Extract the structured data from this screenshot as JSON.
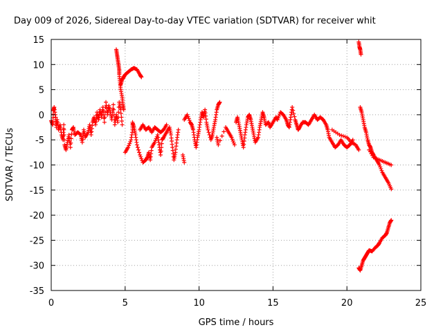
{
  "chart_data": {
    "type": "scatter",
    "title": "Day 009 of 2026, Sidereal Day-to-day VTEC variation (SDTVAR) for receiver whit",
    "xlabel": "GPS time / hours",
    "ylabel": "SDTVAR / TECUs",
    "xlim": [
      0,
      25
    ],
    "ylim": [
      -35,
      15
    ],
    "xticks": [
      "0",
      "5",
      "10",
      "15",
      "20",
      "25"
    ],
    "yticks": [
      "15",
      "10",
      "5",
      "0",
      "-5",
      "-10",
      "-15",
      "-20",
      "-25",
      "-30",
      "-35"
    ],
    "grid": true,
    "marker": "+",
    "color": "#ff0000",
    "series": [
      {
        "name": "SDTVAR",
        "points": [
          [
            0.0,
            -1.2
          ],
          [
            0.1,
            -2.0
          ],
          [
            0.15,
            0.8
          ],
          [
            0.2,
            1.5
          ],
          [
            0.3,
            -0.5
          ],
          [
            0.35,
            -2.5
          ],
          [
            0.4,
            -1.0
          ],
          [
            0.5,
            -3.0
          ],
          [
            0.6,
            -2.0
          ],
          [
            0.7,
            -4.0
          ],
          [
            0.8,
            -5.0
          ],
          [
            0.85,
            -2.0
          ],
          [
            0.9,
            -6.0
          ],
          [
            1.0,
            -7.0
          ],
          [
            1.1,
            -5.5
          ],
          [
            1.2,
            -4.0
          ],
          [
            1.3,
            -6.5
          ],
          [
            1.4,
            -3.0
          ],
          [
            1.5,
            -2.5
          ],
          [
            1.6,
            -4.0
          ],
          [
            1.8,
            -3.5
          ],
          [
            2.0,
            -4.0
          ],
          [
            2.1,
            -5.5
          ],
          [
            2.2,
            -3.0
          ],
          [
            2.3,
            -4.5
          ],
          [
            2.5,
            -3.5
          ],
          [
            2.6,
            -2.0
          ],
          [
            2.7,
            -4.0
          ],
          [
            2.8,
            -1.5
          ],
          [
            2.9,
            -0.5
          ],
          [
            3.0,
            -2.0
          ],
          [
            3.1,
            0.5
          ],
          [
            3.2,
            -1.0
          ],
          [
            3.3,
            1.0
          ],
          [
            3.4,
            -0.5
          ],
          [
            3.5,
            1.5
          ],
          [
            3.6,
            -1.5
          ],
          [
            3.7,
            2.5
          ],
          [
            3.8,
            0.0
          ],
          [
            3.9,
            1.8
          ],
          [
            4.0,
            0.5
          ],
          [
            4.1,
            -1.0
          ],
          [
            4.2,
            2.0
          ],
          [
            4.3,
            -2.0
          ],
          [
            4.4,
            0.0
          ],
          [
            4.5,
            -1.5
          ],
          [
            4.6,
            2.5
          ],
          [
            4.7,
            1.0
          ],
          [
            4.8,
            -2.0
          ],
          [
            4.4,
            13.0
          ],
          [
            4.45,
            12.0
          ],
          [
            4.5,
            11.0
          ],
          [
            4.55,
            10.0
          ],
          [
            4.6,
            9.0
          ],
          [
            4.6,
            8.0
          ],
          [
            4.65,
            6.5
          ],
          [
            4.7,
            5.0
          ],
          [
            4.8,
            3.5
          ],
          [
            4.85,
            2.0
          ],
          [
            4.9,
            1.0
          ],
          [
            4.7,
            6.0
          ],
          [
            4.8,
            7.0
          ],
          [
            4.9,
            7.5
          ],
          [
            5.0,
            8.0
          ],
          [
            5.2,
            8.5
          ],
          [
            5.4,
            9.0
          ],
          [
            5.6,
            9.3
          ],
          [
            5.8,
            9.0
          ],
          [
            6.0,
            8.0
          ],
          [
            6.1,
            7.5
          ],
          [
            5.0,
            -7.5
          ],
          [
            5.2,
            -6.5
          ],
          [
            5.4,
            -5.0
          ],
          [
            5.5,
            -3.0
          ],
          [
            5.5,
            -1.5
          ],
          [
            5.6,
            -2.5
          ],
          [
            5.7,
            -4.0
          ],
          [
            5.8,
            -6.0
          ],
          [
            6.0,
            -8.0
          ],
          [
            6.2,
            -9.5
          ],
          [
            6.4,
            -9.0
          ],
          [
            6.5,
            -8.5
          ],
          [
            6.6,
            -7.5
          ],
          [
            6.7,
            -9.0
          ],
          [
            6.8,
            -6.5
          ],
          [
            7.0,
            -5.5
          ],
          [
            7.2,
            -4.0
          ],
          [
            7.3,
            -6.0
          ],
          [
            7.4,
            -8.0
          ],
          [
            7.5,
            -5.0
          ],
          [
            7.6,
            -4.5
          ],
          [
            7.8,
            -3.5
          ],
          [
            8.0,
            -2.5
          ],
          [
            8.1,
            -4.0
          ],
          [
            8.2,
            -6.5
          ],
          [
            8.3,
            -9.0
          ],
          [
            8.4,
            -7.5
          ],
          [
            8.5,
            -5.0
          ],
          [
            8.6,
            -3.0
          ],
          [
            6.0,
            -3.0
          ],
          [
            6.2,
            -2.0
          ],
          [
            6.4,
            -3.0
          ],
          [
            6.6,
            -2.5
          ],
          [
            6.8,
            -3.5
          ],
          [
            7.0,
            -2.5
          ],
          [
            7.2,
            -3.0
          ],
          [
            7.4,
            -3.5
          ],
          [
            7.6,
            -3.0
          ],
          [
            7.8,
            -2.0
          ],
          [
            8.9,
            -8.0
          ],
          [
            9.0,
            -9.5
          ],
          [
            9.0,
            -1.0
          ],
          [
            9.2,
            0.0
          ],
          [
            9.4,
            -1.5
          ],
          [
            9.5,
            -2.0
          ],
          [
            9.6,
            -3.0
          ],
          [
            9.7,
            -5.0
          ],
          [
            9.8,
            -6.5
          ],
          [
            9.9,
            -4.5
          ],
          [
            10.0,
            -3.0
          ],
          [
            10.1,
            -1.0
          ],
          [
            10.2,
            0.5
          ],
          [
            10.3,
            -0.5
          ],
          [
            10.4,
            1.0
          ],
          [
            10.5,
            -1.5
          ],
          [
            10.6,
            -3.0
          ],
          [
            10.8,
            -5.0
          ],
          [
            10.9,
            -4.0
          ],
          [
            11.0,
            -2.5
          ],
          [
            11.1,
            -1.0
          ],
          [
            11.2,
            1.0
          ],
          [
            11.3,
            2.0
          ],
          [
            11.4,
            2.5
          ],
          [
            11.2,
            -4.5
          ],
          [
            11.3,
            -6.0
          ],
          [
            11.8,
            -2.5
          ],
          [
            12.0,
            -3.5
          ],
          [
            12.2,
            -4.5
          ],
          [
            12.4,
            -6.0
          ],
          [
            12.5,
            -1.5
          ],
          [
            12.6,
            -0.5
          ],
          [
            12.7,
            -2.0
          ],
          [
            12.8,
            -3.5
          ],
          [
            12.9,
            -5.0
          ],
          [
            13.0,
            -6.5
          ],
          [
            13.1,
            -4.0
          ],
          [
            13.2,
            -2.0
          ],
          [
            13.3,
            -0.5
          ],
          [
            13.4,
            0.0
          ],
          [
            13.5,
            -1.0
          ],
          [
            13.6,
            -2.5
          ],
          [
            13.7,
            -4.0
          ],
          [
            13.8,
            -5.5
          ],
          [
            14.0,
            -4.5
          ],
          [
            14.1,
            -2.5
          ],
          [
            14.2,
            -1.0
          ],
          [
            14.3,
            0.5
          ],
          [
            14.4,
            -0.5
          ],
          [
            14.5,
            -2.0
          ],
          [
            14.7,
            -1.5
          ],
          [
            14.8,
            -2.5
          ],
          [
            15.0,
            -1.5
          ],
          [
            15.2,
            -0.5
          ],
          [
            15.3,
            -1.0
          ],
          [
            15.5,
            0.5
          ],
          [
            15.7,
            0.0
          ],
          [
            15.9,
            -1.0
          ],
          [
            16.0,
            -2.0
          ],
          [
            16.1,
            -2.5
          ],
          [
            16.2,
            -0.5
          ],
          [
            16.3,
            1.5
          ],
          [
            16.5,
            -1.0
          ],
          [
            16.6,
            -2.0
          ],
          [
            16.7,
            -3.0
          ],
          [
            16.8,
            -2.5
          ],
          [
            17.0,
            -1.5
          ],
          [
            17.2,
            -1.5
          ],
          [
            17.4,
            -2.0
          ],
          [
            17.6,
            -1.0
          ],
          [
            17.8,
            0.0
          ],
          [
            18.0,
            -1.0
          ],
          [
            18.2,
            -0.5
          ],
          [
            18.4,
            -1.0
          ],
          [
            18.6,
            -2.0
          ],
          [
            18.7,
            -3.0
          ],
          [
            18.8,
            -4.5
          ],
          [
            19.0,
            -5.5
          ],
          [
            19.2,
            -6.5
          ],
          [
            19.4,
            -6.0
          ],
          [
            19.6,
            -5.0
          ],
          [
            19.8,
            -6.0
          ],
          [
            20.0,
            -6.5
          ],
          [
            20.2,
            -6.0
          ],
          [
            20.4,
            -5.0
          ],
          [
            19.0,
            -3.0
          ],
          [
            19.5,
            -4.0
          ],
          [
            20.0,
            -4.5
          ],
          [
            20.3,
            -5.5
          ],
          [
            20.6,
            -6.0
          ],
          [
            20.8,
            -7.0
          ],
          [
            20.9,
            1.5
          ],
          [
            21.0,
            0.5
          ],
          [
            21.1,
            -1.0
          ],
          [
            21.2,
            -2.5
          ],
          [
            21.3,
            -3.5
          ],
          [
            21.4,
            -5.0
          ],
          [
            21.5,
            -6.0
          ],
          [
            21.6,
            -6.5
          ],
          [
            21.7,
            -7.5
          ],
          [
            21.8,
            -8.0
          ],
          [
            22.0,
            -9.0
          ],
          [
            22.2,
            -10.0
          ],
          [
            22.4,
            -11.5
          ],
          [
            22.6,
            -12.5
          ],
          [
            22.8,
            -13.5
          ],
          [
            23.0,
            -14.8
          ],
          [
            21.5,
            -7.0
          ],
          [
            21.8,
            -8.5
          ],
          [
            22.2,
            -9.0
          ],
          [
            22.6,
            -9.5
          ],
          [
            23.0,
            -10.0
          ],
          [
            20.8,
            14.5
          ],
          [
            20.85,
            13.5
          ],
          [
            20.9,
            13.0
          ],
          [
            20.95,
            12.0
          ],
          [
            20.8,
            -30.5
          ],
          [
            20.9,
            -31.0
          ],
          [
            21.0,
            -30.0
          ],
          [
            21.1,
            -29.0
          ],
          [
            21.2,
            -28.5
          ],
          [
            21.3,
            -28.0
          ],
          [
            21.4,
            -27.5
          ],
          [
            21.5,
            -27.0
          ],
          [
            21.7,
            -27.2
          ],
          [
            21.9,
            -26.5
          ],
          [
            22.1,
            -26.0
          ],
          [
            22.2,
            -25.5
          ],
          [
            22.4,
            -24.5
          ],
          [
            22.6,
            -24.0
          ],
          [
            22.7,
            -23.5
          ],
          [
            22.8,
            -22.5
          ],
          [
            22.9,
            -21.5
          ],
          [
            23.0,
            -21.0
          ]
        ]
      }
    ]
  }
}
